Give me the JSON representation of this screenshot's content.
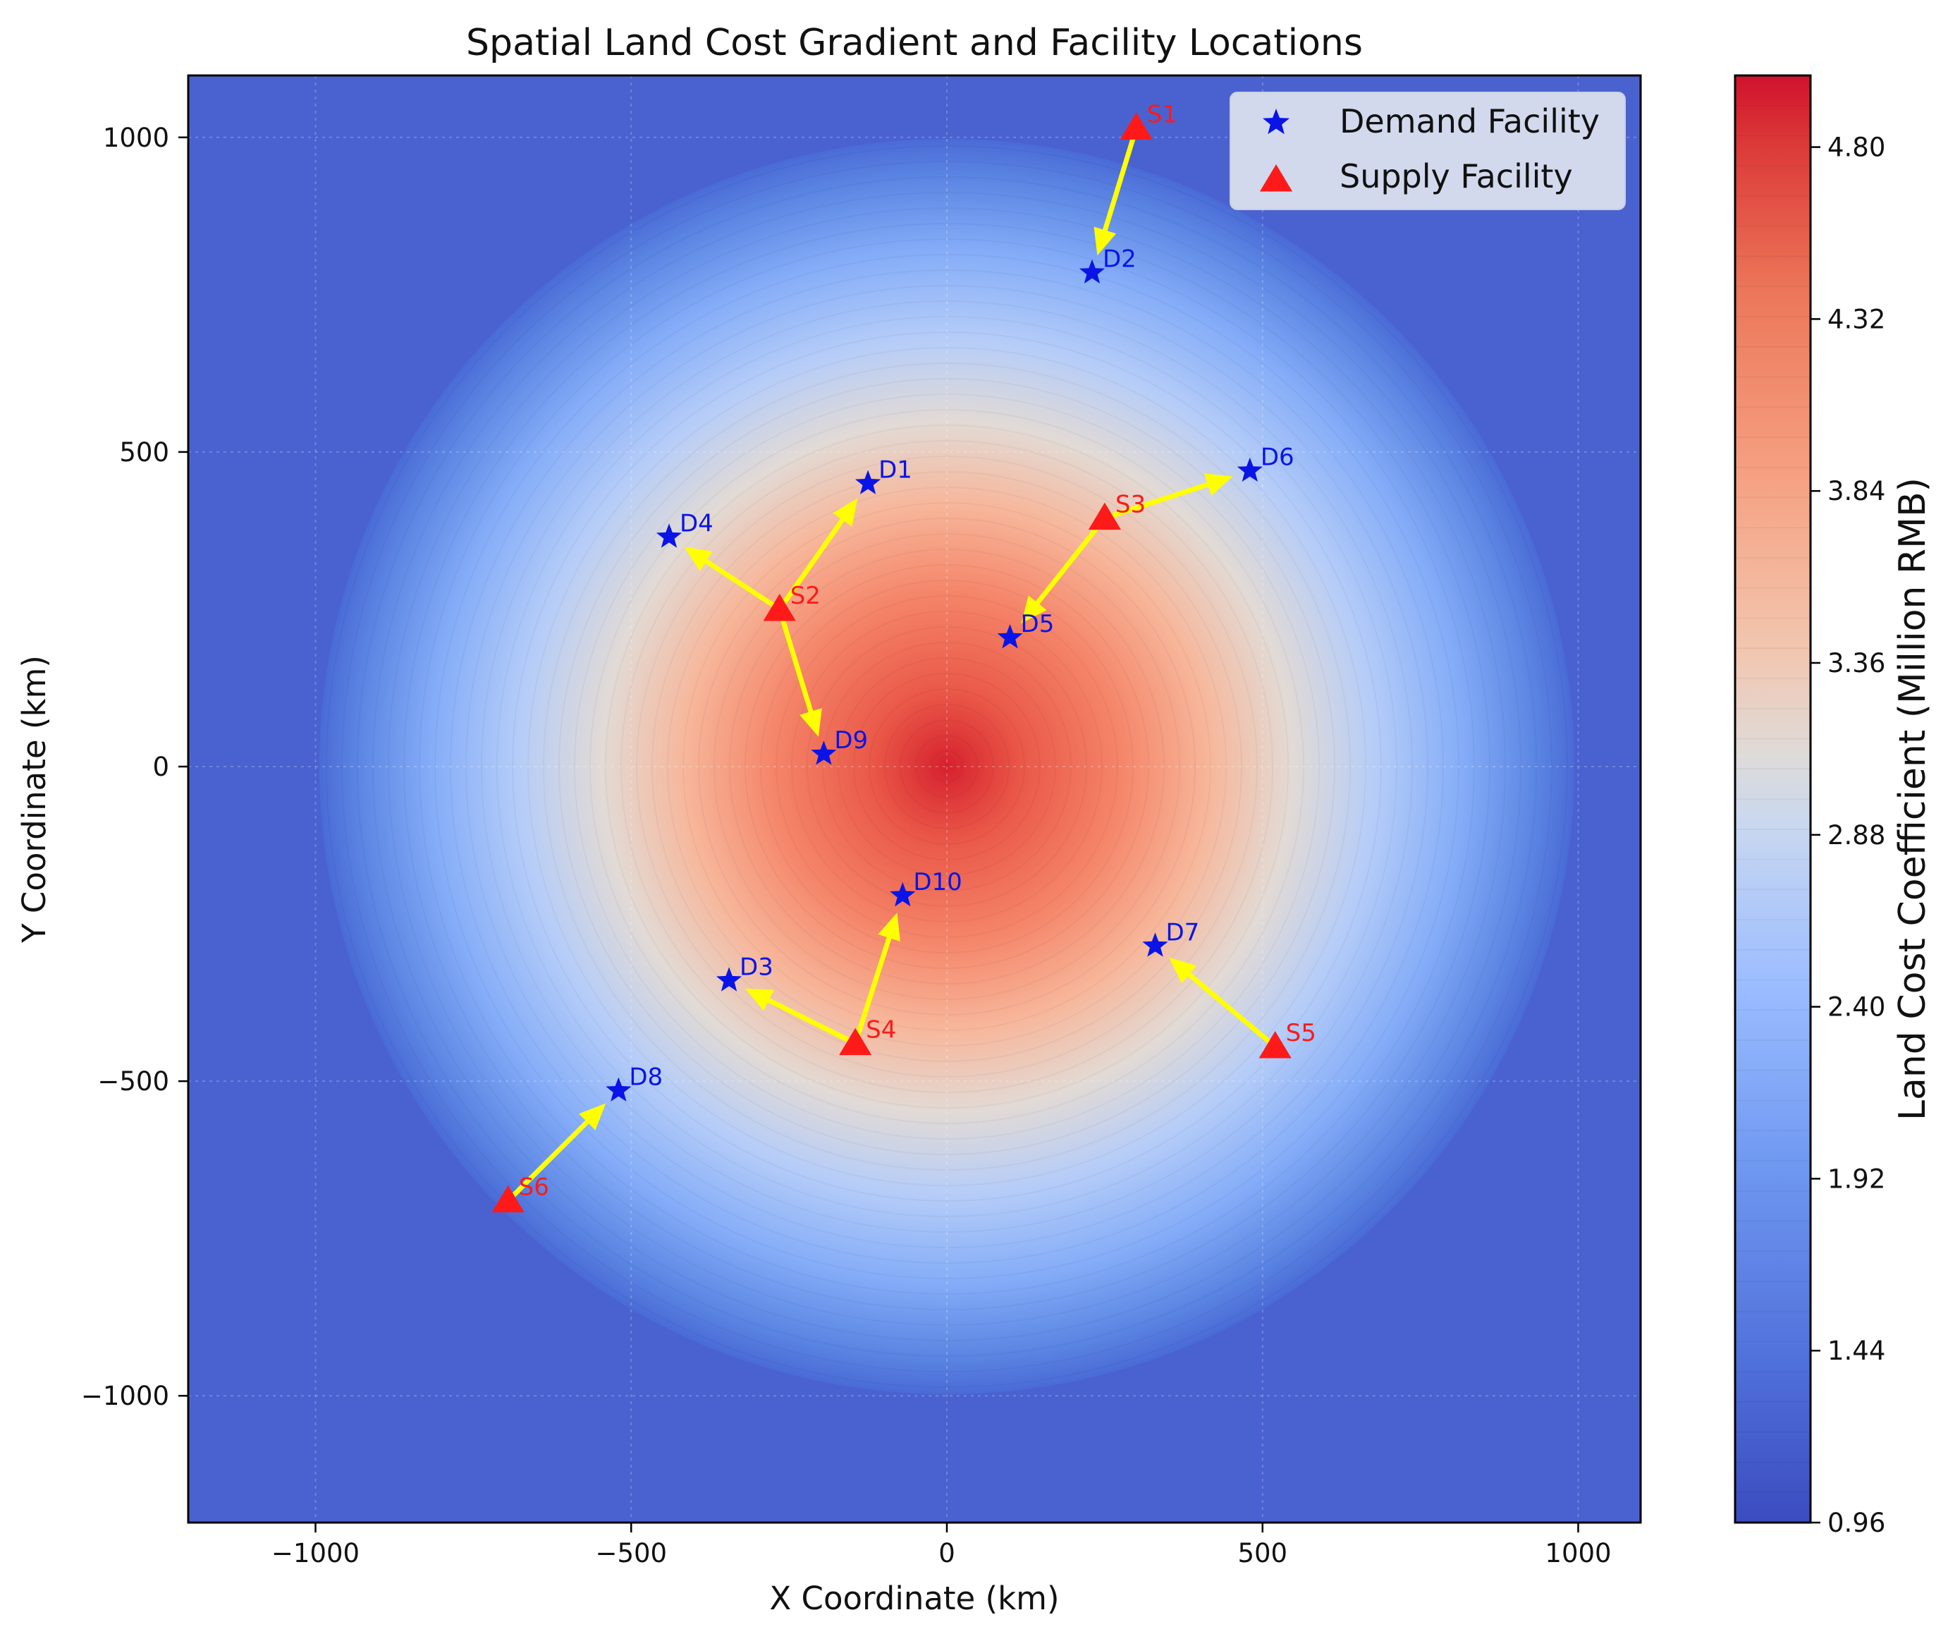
{
  "chart_data": {
    "type": "scatter",
    "title": "Spatial Land Cost Gradient and Facility Locations",
    "xlabel": "X Coordinate (km)",
    "ylabel": "Y Coordinate (km)",
    "xlim": [
      -1200,
      1100
    ],
    "ylim": [
      -1200,
      1100
    ],
    "x_ticks": [
      -1000,
      -500,
      0,
      500,
      1000
    ],
    "x_tick_labels": [
      "−1000",
      "−500",
      "0",
      "500",
      "1000"
    ],
    "y_ticks": [
      1000,
      500,
      0,
      -500,
      -1000
    ],
    "y_tick_labels": [
      "1000",
      "500",
      "0",
      "−500",
      "−1000"
    ],
    "grid": true,
    "background_field": {
      "description": "radial land cost gradient centered at origin",
      "center": [
        0,
        0
      ],
      "peak": 5.0,
      "base": 0.96,
      "radius_km": 1000
    },
    "colorbar": {
      "label": "Land Cost Coefficient (Million RMB)",
      "min": 0.96,
      "max": 5.0,
      "ticks": [
        0.96,
        1.44,
        1.92,
        2.4,
        2.88,
        3.36,
        3.84,
        4.32,
        4.8
      ],
      "tick_labels": [
        "0.96",
        "1.44",
        "1.92",
        "2.40",
        "2.88",
        "3.36",
        "3.84",
        "4.32",
        "4.80"
      ]
    },
    "legend": {
      "position": "top-right",
      "entries": [
        "Demand Facility",
        "Supply Facility"
      ]
    },
    "demand": [
      {
        "label": "D1",
        "x": -125,
        "y": 450
      },
      {
        "label": "D2",
        "x": 230,
        "y": 785
      },
      {
        "label": "D3",
        "x": -345,
        "y": -340
      },
      {
        "label": "D4",
        "x": -440,
        "y": 365
      },
      {
        "label": "D5",
        "x": 100,
        "y": 205
      },
      {
        "label": "D6",
        "x": 480,
        "y": 470
      },
      {
        "label": "D7",
        "x": 330,
        "y": -285
      },
      {
        "label": "D8",
        "x": -520,
        "y": -515
      },
      {
        "label": "D9",
        "x": -195,
        "y": 20
      },
      {
        "label": "D10",
        "x": -70,
        "y": -205
      }
    ],
    "supply": [
      {
        "label": "S1",
        "x": 300,
        "y": 1015
      },
      {
        "label": "S2",
        "x": -265,
        "y": 250
      },
      {
        "label": "S3",
        "x": 250,
        "y": 395
      },
      {
        "label": "S4",
        "x": -145,
        "y": -440
      },
      {
        "label": "S5",
        "x": 520,
        "y": -445
      },
      {
        "label": "S6",
        "x": -695,
        "y": -690
      }
    ],
    "assignments": [
      {
        "from": "S1",
        "to": "D2"
      },
      {
        "from": "S2",
        "to": "D1"
      },
      {
        "from": "S2",
        "to": "D4"
      },
      {
        "from": "S2",
        "to": "D9"
      },
      {
        "from": "S3",
        "to": "D6"
      },
      {
        "from": "S3",
        "to": "D5"
      },
      {
        "from": "S4",
        "to": "D10"
      },
      {
        "from": "S4",
        "to": "D3"
      },
      {
        "from": "S5",
        "to": "D7"
      },
      {
        "from": "S6",
        "to": "D8"
      }
    ]
  },
  "colors": {
    "demand": "#0a14e6",
    "supply": "#ff1a1a",
    "arrow": "#ffff00",
    "low": "#3b4cc0",
    "mid": "#dddcdc",
    "high": "#d8122c"
  }
}
